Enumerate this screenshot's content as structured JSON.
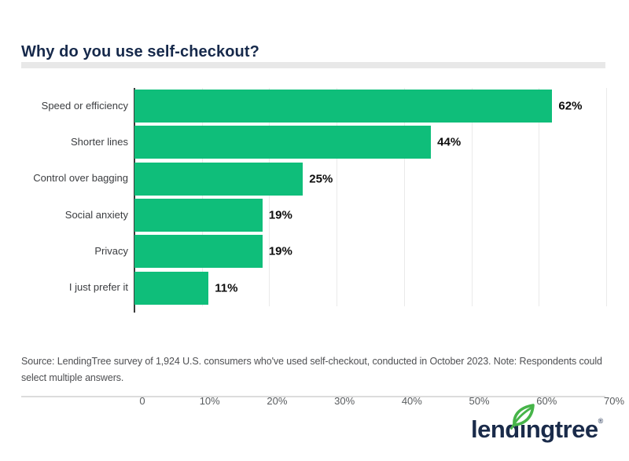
{
  "header": {
    "title": "Why do you use self-checkout?"
  },
  "chart_data": {
    "type": "bar",
    "orientation": "horizontal",
    "title": "Why do you use self-checkout?",
    "categories": [
      "Speed or efficiency",
      "Shorter lines",
      "Control over bagging",
      "Social anxiety",
      "Privacy",
      "I just prefer it"
    ],
    "values": [
      62,
      44,
      25,
      19,
      19,
      11
    ],
    "value_labels": [
      "62%",
      "44%",
      "25%",
      "19%",
      "19%",
      "11%"
    ],
    "unit": "%",
    "xlim": [
      0,
      70
    ],
    "x_tick_labels": [
      "0",
      "10%",
      "20%",
      "30%",
      "40%",
      "50%",
      "60%",
      "70%"
    ],
    "grid": true,
    "legend": false,
    "bar_color": "#0fbe7a",
    "colors": {
      "title_navy": "#16294b",
      "axis_line": "#3a3a3a",
      "gridline": "#eaeaea",
      "category_label": "#3b3d40",
      "tick_label": "#595c5f",
      "value_label": "#0d0d0d"
    }
  },
  "source": {
    "text": "Source: LendingTree survey of 1,924 U.S. consumers who've used self-checkout, conducted in October 2023. Note: Respondents could select multiple answers."
  },
  "footer": {
    "wordmark": "lendingtree",
    "wordmark_prefix": "lend",
    "wordmark_dotless_i": "ı",
    "wordmark_suffix": "ngtree",
    "registered_mark": "®",
    "logo_navy": "#1a2b4a",
    "leaf_green": "#46b449"
  }
}
